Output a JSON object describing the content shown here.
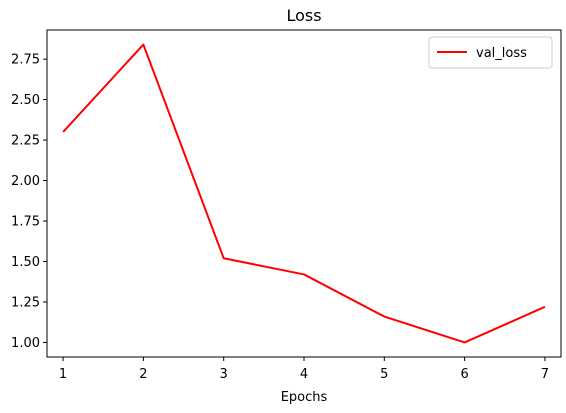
{
  "chart_data": {
    "type": "line",
    "title": "Loss",
    "xlabel": "Epochs",
    "ylabel": "",
    "x": [
      1,
      2,
      3,
      4,
      5,
      6,
      7
    ],
    "series": [
      {
        "name": "val_loss",
        "color": "#ff0000",
        "values": [
          2.3,
          2.84,
          1.52,
          1.42,
          1.16,
          1.0,
          1.22
        ]
      }
    ],
    "xlim": [
      0.8,
      7.2
    ],
    "ylim": [
      0.91,
      2.93
    ],
    "xticks": [
      1,
      2,
      3,
      4,
      5,
      6,
      7
    ],
    "xtick_labels": [
      "1",
      "2",
      "3",
      "4",
      "5",
      "6",
      "7"
    ],
    "yticks": [
      1.0,
      1.25,
      1.5,
      1.75,
      2.0,
      2.25,
      2.5,
      2.75
    ],
    "ytick_labels": [
      "1.00",
      "1.25",
      "1.50",
      "1.75",
      "2.00",
      "2.25",
      "2.50",
      "2.75"
    ],
    "grid": false,
    "legend_position": "top-right"
  }
}
